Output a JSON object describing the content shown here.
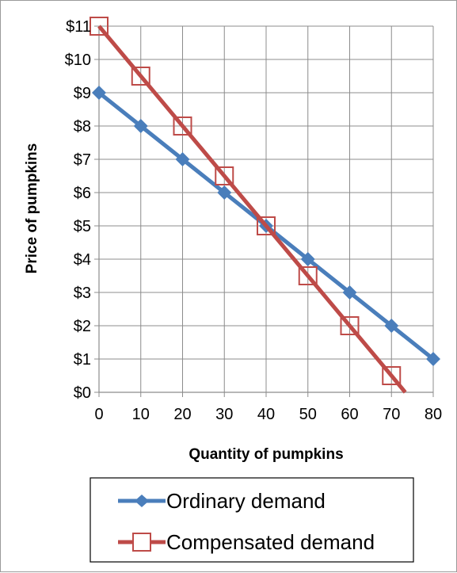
{
  "chart_data": {
    "type": "line",
    "xlabel": "Quantity of pumpkins",
    "ylabel": "Price of pumpkins",
    "xlim": [
      0,
      80
    ],
    "ylim": [
      0,
      11
    ],
    "x_ticks": [
      "0",
      "10",
      "20",
      "30",
      "40",
      "50",
      "60",
      "70",
      "80"
    ],
    "y_ticks": [
      "$0",
      "$1",
      "$2",
      "$3",
      "$4",
      "$5",
      "$6",
      "$7",
      "$8",
      "$9",
      "$10",
      "$11"
    ],
    "grid": true,
    "legend_position": "bottom",
    "series": [
      {
        "name": "Ordinary demand",
        "color": "#4a7ebb",
        "marker": "diamond",
        "x": [
          0,
          10,
          20,
          30,
          40,
          50,
          60,
          70,
          80
        ],
        "y": [
          9,
          8,
          7,
          6,
          5,
          4,
          3,
          2,
          1
        ]
      },
      {
        "name": "Compensated demand",
        "color": "#be4b48",
        "marker": "hollow-square",
        "x": [
          0,
          10,
          20,
          30,
          40,
          50,
          60,
          70
        ],
        "y": [
          11,
          9.5,
          8,
          6.5,
          5,
          3.5,
          2,
          0.5
        ],
        "line_extends_to": [
          73.3,
          0
        ]
      }
    ]
  }
}
